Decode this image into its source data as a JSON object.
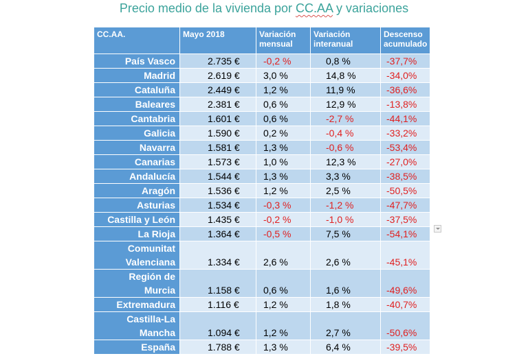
{
  "title_prefix": "Precio medio de la vivienda por ",
  "title_highlight": "CC.AA",
  "title_suffix": " y variaciones",
  "headers": {
    "region": "CC.AA.",
    "price": "Mayo 2018",
    "mensual": "Variación mensual",
    "interanual": "Variación interanual",
    "descenso": "Descenso acumulado"
  },
  "rows": [
    {
      "region": "País Vasco",
      "price": "2.735 €",
      "mensual": "-0,2 %",
      "interanual": "0,8 %",
      "descenso": "-37,7%"
    },
    {
      "region": "Madrid",
      "price": "2.619 €",
      "mensual": "3,0 %",
      "interanual": "14,8 %",
      "descenso": "-34,0%"
    },
    {
      "region": "Cataluña",
      "price": "2.449 €",
      "mensual": "1,2 %",
      "interanual": "11,9 %",
      "descenso": "-36,6%"
    },
    {
      "region": "Baleares",
      "price": "2.381 €",
      "mensual": "0,6 %",
      "interanual": "12,9 %",
      "descenso": "-13,8%"
    },
    {
      "region": "Cantabria",
      "price": "1.601 €",
      "mensual": "0,6 %",
      "interanual": "-2,7 %",
      "descenso": "-44,1%"
    },
    {
      "region": "Galicia",
      "price": "1.590 €",
      "mensual": "0,2 %",
      "interanual": "-0,4 %",
      "descenso": "-33,2%"
    },
    {
      "region": "Navarra",
      "price": "1.581 €",
      "mensual": "1,3 %",
      "interanual": "-0,6 %",
      "descenso": "-53,4%"
    },
    {
      "region": "Canarias",
      "price": "1.573 €",
      "mensual": "1,0 %",
      "interanual": "12,3 %",
      "descenso": "-27,0%"
    },
    {
      "region": "Andalucía",
      "price": "1.544 €",
      "mensual": "1,3 %",
      "interanual": "3,3 %",
      "descenso": "-38,5%"
    },
    {
      "region": "Aragón",
      "price": "1.536 €",
      "mensual": "1,2 %",
      "interanual": "2,5 %",
      "descenso": "-50,5%"
    },
    {
      "region": "Asturias",
      "price": "1.534 €",
      "mensual": "-0,3 %",
      "interanual": "-1,2 %",
      "descenso": "-47,7%"
    },
    {
      "region": "Castilla y León",
      "price": "1.435 €",
      "mensual": "-0,2 %",
      "interanual": "-1,0 %",
      "descenso": "-37,5%"
    },
    {
      "region": "La Rioja",
      "price": "1.364 €",
      "mensual": "-0,5 %",
      "interanual": "7,5 %",
      "descenso": "-54,1%"
    },
    {
      "region": "Comunitat Valenciana",
      "price": "1.334 €",
      "mensual": "2,6 %",
      "interanual": "2,6 %",
      "descenso": "-45,1%"
    },
    {
      "region": "Región de Murcia",
      "price": "1.158 €",
      "mensual": "0,6 %",
      "interanual": "1,6 %",
      "descenso": "-49,6%"
    },
    {
      "region": "Extremadura",
      "price": "1.116 €",
      "mensual": "1,2 %",
      "interanual": "1,8 %",
      "descenso": "-40,7%"
    },
    {
      "region": "Castilla-La Mancha",
      "price": "1.094 €",
      "mensual": "1,2 %",
      "interanual": "2,7 %",
      "descenso": "-50,6%"
    },
    {
      "region": "España",
      "price": "1.788 €",
      "mensual": "1,3 %",
      "interanual": "6,4 %",
      "descenso": "-39,5%"
    }
  ],
  "colors": {
    "title": "#3ba39b",
    "header_bg": "#5b9bd5",
    "row_odd": "#bdd7ee",
    "row_even": "#deebf7",
    "negative": "#e02020"
  },
  "icons": {
    "filter": "filter-dropdown-icon"
  }
}
